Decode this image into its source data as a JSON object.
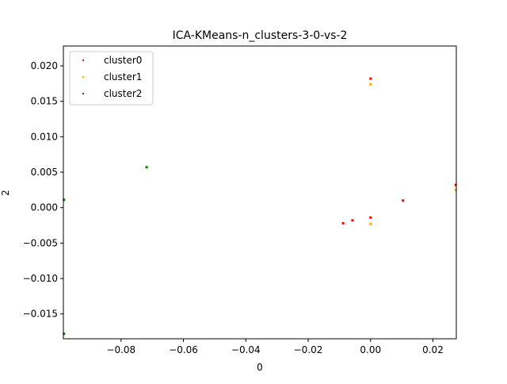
{
  "chart_data": {
    "type": "scatter",
    "title": "ICA-KMeans-n_clusters-3-0-vs-2",
    "xlabel": "0",
    "ylabel": "2",
    "xlim": [
      -0.0985,
      0.0275
    ],
    "ylim": [
      -0.0185,
      0.0228
    ],
    "grid": false,
    "legend_position": "upper left",
    "xticks": [
      {
        "value": -0.08,
        "label": "−0.08"
      },
      {
        "value": -0.06,
        "label": "−0.06"
      },
      {
        "value": -0.04,
        "label": "−0.04"
      },
      {
        "value": -0.02,
        "label": "−0.02"
      },
      {
        "value": 0.0,
        "label": "0.00"
      },
      {
        "value": 0.02,
        "label": "0.02"
      }
    ],
    "yticks": [
      {
        "value": 0.02,
        "label": "0.020"
      },
      {
        "value": 0.015,
        "label": "0.015"
      },
      {
        "value": 0.01,
        "label": "0.010"
      },
      {
        "value": 0.005,
        "label": "0.005"
      },
      {
        "value": 0.0,
        "label": "0.000"
      },
      {
        "value": -0.005,
        "label": "−0.005"
      },
      {
        "value": -0.01,
        "label": "−0.010"
      },
      {
        "value": -0.015,
        "label": "−0.015"
      }
    ],
    "series": [
      {
        "name": "cluster0",
        "color": "#ff0000",
        "points": [
          {
            "x": 0.0,
            "y": 0.0182
          },
          {
            "x": 0.0104,
            "y": 0.001
          },
          {
            "x": 0.0,
            "y": -0.0014
          },
          {
            "x": -0.0058,
            "y": -0.0018
          },
          {
            "x": -0.0088,
            "y": -0.0022
          },
          {
            "x": 0.0273,
            "y": 0.0032
          }
        ]
      },
      {
        "name": "cluster1",
        "color": "#ffa500",
        "points": [
          {
            "x": 0.0,
            "y": 0.0174
          },
          {
            "x": 0.0,
            "y": -0.0023
          },
          {
            "x": 0.0273,
            "y": 0.0025
          }
        ]
      },
      {
        "name": "cluster2",
        "color": "#008000",
        "points": [
          {
            "x": -0.0718,
            "y": 0.0057
          },
          {
            "x": -0.0983,
            "y": 0.0011
          },
          {
            "x": -0.0983,
            "y": -0.0178
          }
        ]
      }
    ]
  }
}
